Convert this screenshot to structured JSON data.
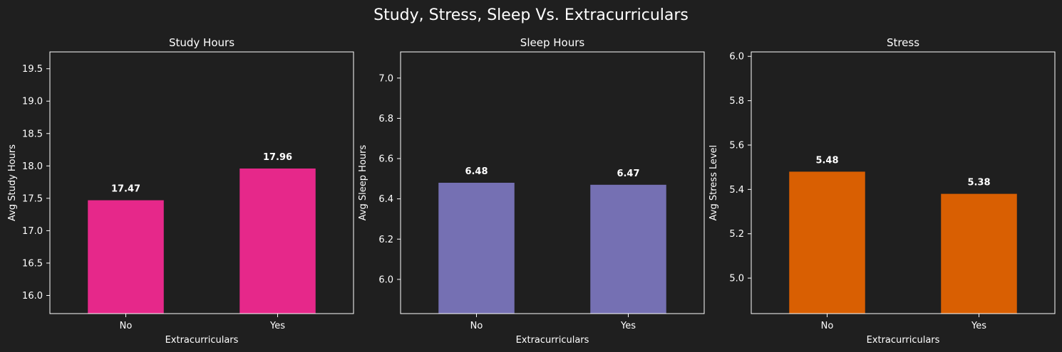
{
  "figure": {
    "title": "Study, Stress, Sleep Vs. Extracurriculars",
    "background": "#1f1f1f",
    "text_color": "#ffffff"
  },
  "chart_data": [
    {
      "type": "bar",
      "title": "Study Hours",
      "xlabel": "Extracurriculars",
      "ylabel": "Avg Study Hours",
      "categories": [
        "No",
        "Yes"
      ],
      "values": [
        17.47,
        17.96
      ],
      "value_labels": [
        "17.47",
        "17.96"
      ],
      "yticks": [
        16.0,
        16.5,
        17.0,
        17.5,
        18.0,
        18.5,
        19.0,
        19.5
      ],
      "ytick_labels": [
        "16.0",
        "16.5",
        "17.0",
        "17.5",
        "18.0",
        "18.5",
        "19.0",
        "19.5"
      ],
      "ylim": [
        15.72,
        19.76
      ],
      "color": "#e6288a",
      "grid": false
    },
    {
      "type": "bar",
      "title": "Sleep Hours",
      "xlabel": "Extracurriculars",
      "ylabel": "Avg Sleep Hours",
      "categories": [
        "No",
        "Yes"
      ],
      "values": [
        6.48,
        6.47
      ],
      "value_labels": [
        "6.48",
        "6.47"
      ],
      "yticks": [
        6.0,
        6.2,
        6.4,
        6.6,
        6.8,
        7.0
      ],
      "ytick_labels": [
        "6.0",
        "6.2",
        "6.4",
        "6.6",
        "6.8",
        "7.0"
      ],
      "ylim": [
        5.83,
        7.13
      ],
      "color": "#7570b3",
      "grid": false
    },
    {
      "type": "bar",
      "title": "Stress",
      "xlabel": "Extracurriculars",
      "ylabel": "Avg Stress Level",
      "categories": [
        "No",
        "Yes"
      ],
      "values": [
        5.48,
        5.38
      ],
      "value_labels": [
        "5.48",
        "5.38"
      ],
      "yticks": [
        5.0,
        5.2,
        5.4,
        5.6,
        5.8,
        6.0
      ],
      "ytick_labels": [
        "5.0",
        "5.2",
        "5.4",
        "5.6",
        "5.8",
        "6.0"
      ],
      "ylim": [
        4.84,
        6.02
      ],
      "color": "#d95f02",
      "grid": false
    }
  ]
}
